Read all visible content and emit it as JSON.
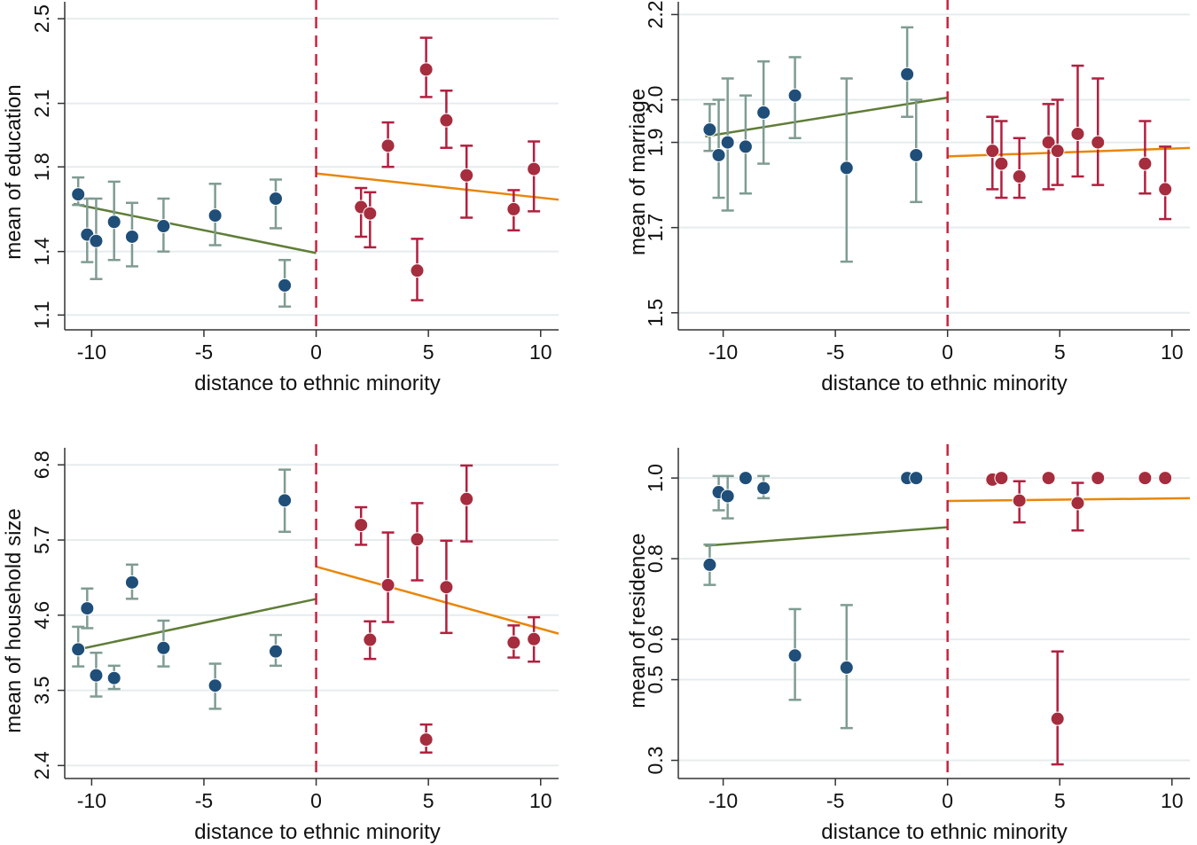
{
  "figure": {
    "background": "#ffffff",
    "grid_color": "#e6ecee"
  },
  "colors": {
    "left_marker": "#1f4e79",
    "left_errorbar": "#7f9c92",
    "left_fit": "#5f7d38",
    "right_marker": "#a52d3e",
    "right_errorbar": "#b21f3f",
    "right_fit": "#e8860b",
    "cutoff_line": "#c8233f"
  },
  "chart_data": [
    {
      "id": "education",
      "type": "scatter",
      "title": "",
      "xlabel": "distance to ethnic minority",
      "ylabel": "mean of education",
      "xlim": [
        -11.2,
        10.8
      ],
      "ylim": [
        1.03,
        2.58
      ],
      "xticks": [
        -10,
        -5,
        0,
        5,
        10
      ],
      "xtick_labels": [
        "-10",
        "-5",
        "0",
        "5",
        "10"
      ],
      "yticks": [
        1.1,
        1.4,
        1.8,
        2.1,
        2.5
      ],
      "ytick_labels": [
        "1.1",
        "1.4",
        "1.8",
        "2.1",
        "2.5"
      ],
      "cutoff": 0,
      "grid": true,
      "left": {
        "points": [
          {
            "x": -10.6,
            "y": 1.67,
            "lo": 1.62,
            "hi": 1.75
          },
          {
            "x": -10.2,
            "y": 1.48,
            "lo": 1.35,
            "hi": 1.65
          },
          {
            "x": -9.8,
            "y": 1.45,
            "lo": 1.27,
            "hi": 1.65
          },
          {
            "x": -9.0,
            "y": 1.54,
            "lo": 1.36,
            "hi": 1.73
          },
          {
            "x": -8.2,
            "y": 1.47,
            "lo": 1.33,
            "hi": 1.63
          },
          {
            "x": -6.8,
            "y": 1.52,
            "lo": 1.4,
            "hi": 1.65
          },
          {
            "x": -4.5,
            "y": 1.57,
            "lo": 1.43,
            "hi": 1.72
          },
          {
            "x": -1.8,
            "y": 1.65,
            "lo": 1.51,
            "hi": 1.74
          },
          {
            "x": -1.4,
            "y": 1.24,
            "lo": 1.14,
            "hi": 1.36
          }
        ],
        "fit": {
          "x": [
            -10.8,
            0
          ],
          "y": [
            1.625,
            1.393
          ]
        }
      },
      "right": {
        "points": [
          {
            "x": 2.0,
            "y": 1.61,
            "lo": 1.47,
            "hi": 1.7
          },
          {
            "x": 2.4,
            "y": 1.58,
            "lo": 1.42,
            "hi": 1.68
          },
          {
            "x": 3.2,
            "y": 1.9,
            "lo": 1.8,
            "hi": 2.01
          },
          {
            "x": 4.5,
            "y": 1.31,
            "lo": 1.17,
            "hi": 1.46
          },
          {
            "x": 4.9,
            "y": 2.26,
            "lo": 2.13,
            "hi": 2.41
          },
          {
            "x": 5.8,
            "y": 2.02,
            "lo": 1.89,
            "hi": 2.16
          },
          {
            "x": 6.7,
            "y": 1.76,
            "lo": 1.56,
            "hi": 1.9
          },
          {
            "x": 8.8,
            "y": 1.6,
            "lo": 1.5,
            "hi": 1.69
          },
          {
            "x": 9.7,
            "y": 1.79,
            "lo": 1.59,
            "hi": 1.92
          }
        ],
        "fit": {
          "x": [
            0,
            10.8
          ],
          "y": [
            1.769,
            1.645
          ]
        }
      }
    },
    {
      "id": "marriage",
      "type": "scatter",
      "title": "",
      "xlabel": "distance to ethnic minority",
      "ylabel": "mean of marriage",
      "xlim": [
        -12.0,
        10.8
      ],
      "ylim": [
        1.46,
        2.23
      ],
      "xticks": [
        -10,
        -5,
        0,
        5,
        10
      ],
      "xtick_labels": [
        "-10",
        "-5",
        "0",
        "5",
        "10"
      ],
      "yticks": [
        1.5,
        1.7,
        1.9,
        2.0,
        2.2
      ],
      "ytick_labels": [
        "1.5",
        "1.7",
        "1.9",
        "2.0",
        "2.2"
      ],
      "cutoff": 0,
      "grid": true,
      "left": {
        "points": [
          {
            "x": -10.6,
            "y": 1.93,
            "lo": 1.88,
            "hi": 1.99
          },
          {
            "x": -10.2,
            "y": 1.87,
            "lo": 1.77,
            "hi": 2.0
          },
          {
            "x": -9.8,
            "y": 1.9,
            "lo": 1.74,
            "hi": 2.05
          },
          {
            "x": -9.0,
            "y": 1.89,
            "lo": 1.78,
            "hi": 2.01
          },
          {
            "x": -8.2,
            "y": 1.97,
            "lo": 1.85,
            "hi": 2.09
          },
          {
            "x": -6.8,
            "y": 2.01,
            "lo": 1.91,
            "hi": 2.1
          },
          {
            "x": -4.5,
            "y": 1.84,
            "lo": 1.62,
            "hi": 2.05
          },
          {
            "x": -1.8,
            "y": 2.06,
            "lo": 1.96,
            "hi": 2.17
          },
          {
            "x": -1.4,
            "y": 1.87,
            "lo": 1.76,
            "hi": 2.0
          }
        ],
        "fit": {
          "x": [
            -10.8,
            0
          ],
          "y": [
            1.914,
            2.005
          ]
        }
      },
      "right": {
        "points": [
          {
            "x": 2.0,
            "y": 1.88,
            "lo": 1.79,
            "hi": 1.96
          },
          {
            "x": 2.4,
            "y": 1.85,
            "lo": 1.77,
            "hi": 1.95
          },
          {
            "x": 3.2,
            "y": 1.82,
            "lo": 1.77,
            "hi": 1.91
          },
          {
            "x": 4.5,
            "y": 1.9,
            "lo": 1.79,
            "hi": 1.99
          },
          {
            "x": 4.9,
            "y": 1.88,
            "lo": 1.8,
            "hi": 2.0
          },
          {
            "x": 5.8,
            "y": 1.92,
            "lo": 1.82,
            "hi": 2.08
          },
          {
            "x": 6.7,
            "y": 1.9,
            "lo": 1.8,
            "hi": 2.05
          },
          {
            "x": 8.8,
            "y": 1.85,
            "lo": 1.78,
            "hi": 1.95
          },
          {
            "x": 9.7,
            "y": 1.79,
            "lo": 1.72,
            "hi": 1.89
          }
        ],
        "fit": {
          "x": [
            0,
            10.8
          ],
          "y": [
            1.867,
            1.887
          ]
        }
      }
    },
    {
      "id": "household_size",
      "type": "scatter",
      "title": "",
      "xlabel": "distance to ethnic minority",
      "ylabel": "mean of household size",
      "xlim": [
        -11.2,
        10.8
      ],
      "ylim": [
        2.21,
        7.05
      ],
      "xticks": [
        -10,
        -5,
        0,
        5,
        10
      ],
      "xtick_labels": [
        "-10",
        "-5",
        "0",
        "5",
        "10"
      ],
      "yticks": [
        2.4,
        3.5,
        4.6,
        5.7,
        6.8
      ],
      "ytick_labels": [
        "2.4",
        "3.5",
        "4.6",
        "5.7",
        "6.8"
      ],
      "cutoff": 0,
      "grid": true,
      "left": {
        "points": [
          {
            "x": -10.6,
            "y": 4.1,
            "lo": 3.85,
            "hi": 4.43
          },
          {
            "x": -10.2,
            "y": 4.7,
            "lo": 4.41,
            "hi": 4.99
          },
          {
            "x": -9.8,
            "y": 3.72,
            "lo": 3.41,
            "hi": 4.05
          },
          {
            "x": -9.0,
            "y": 3.68,
            "lo": 3.52,
            "hi": 3.86
          },
          {
            "x": -8.2,
            "y": 5.08,
            "lo": 4.84,
            "hi": 5.34
          },
          {
            "x": -6.8,
            "y": 4.12,
            "lo": 3.85,
            "hi": 4.52
          },
          {
            "x": -4.5,
            "y": 3.57,
            "lo": 3.23,
            "hi": 3.89
          },
          {
            "x": -1.8,
            "y": 4.07,
            "lo": 3.86,
            "hi": 4.31
          },
          {
            "x": -1.4,
            "y": 6.28,
            "lo": 5.82,
            "hi": 6.73
          }
        ],
        "fit": {
          "x": [
            -10.8,
            0
          ],
          "y": [
            4.085,
            4.837
          ]
        }
      },
      "right": {
        "points": [
          {
            "x": 2.0,
            "y": 5.92,
            "lo": 5.63,
            "hi": 6.18
          },
          {
            "x": 2.4,
            "y": 4.24,
            "lo": 3.96,
            "hi": 4.51
          },
          {
            "x": 3.2,
            "y": 5.04,
            "lo": 4.5,
            "hi": 5.81
          },
          {
            "x": 4.5,
            "y": 5.71,
            "lo": 5.11,
            "hi": 6.24
          },
          {
            "x": 4.9,
            "y": 2.78,
            "lo": 2.59,
            "hi": 3.0
          },
          {
            "x": 5.8,
            "y": 5.01,
            "lo": 4.34,
            "hi": 5.69
          },
          {
            "x": 6.7,
            "y": 6.3,
            "lo": 5.68,
            "hi": 6.79
          },
          {
            "x": 8.8,
            "y": 4.2,
            "lo": 3.98,
            "hi": 4.45
          },
          {
            "x": 9.7,
            "y": 4.25,
            "lo": 3.92,
            "hi": 4.57
          }
        ],
        "fit": {
          "x": [
            0,
            10.8
          ],
          "y": [
            5.31,
            4.33
          ]
        }
      }
    },
    {
      "id": "residence",
      "type": "scatter",
      "title": "",
      "xlabel": "distance to ethnic minority",
      "ylabel": "mean of residence",
      "xlim": [
        -12.0,
        10.8
      ],
      "ylim": [
        0.255,
        1.075
      ],
      "xticks": [
        -10,
        -5,
        0,
        5,
        10
      ],
      "xtick_labels": [
        "-10",
        "-5",
        "0",
        "5",
        "10"
      ],
      "yticks": [
        0.3,
        0.5,
        0.6,
        0.8,
        1.0
      ],
      "ytick_labels": [
        "0.3",
        "0.5",
        "0.6",
        "0.8",
        "1.0"
      ],
      "cutoff": 0,
      "grid": true,
      "left": {
        "points": [
          {
            "x": -10.6,
            "y": 0.785,
            "lo": 0.735,
            "hi": 0.835
          },
          {
            "x": -10.2,
            "y": 0.965,
            "lo": 0.92,
            "hi": 1.005
          },
          {
            "x": -9.8,
            "y": 0.955,
            "lo": 0.9,
            "hi": 1.005
          },
          {
            "x": -9.0,
            "y": 1.0,
            "lo": 1.0,
            "hi": 1.0
          },
          {
            "x": -8.2,
            "y": 0.975,
            "lo": 0.95,
            "hi": 1.005
          },
          {
            "x": -6.8,
            "y": 0.56,
            "lo": 0.45,
            "hi": 0.675
          },
          {
            "x": -4.5,
            "y": 0.53,
            "lo": 0.38,
            "hi": 0.685
          },
          {
            "x": -1.8,
            "y": 1.0,
            "lo": 1.0,
            "hi": 1.0
          },
          {
            "x": -1.4,
            "y": 1.0,
            "lo": 1.0,
            "hi": 1.0
          }
        ],
        "fit": {
          "x": [
            -10.8,
            0
          ],
          "y": [
            0.832,
            0.878
          ]
        }
      },
      "right": {
        "points": [
          {
            "x": 2.0,
            "y": 0.996,
            "lo": 0.988,
            "hi": 1.0
          },
          {
            "x": 2.4,
            "y": 1.0,
            "lo": 1.0,
            "hi": 1.0
          },
          {
            "x": 3.2,
            "y": 0.944,
            "lo": 0.89,
            "hi": 0.992
          },
          {
            "x": 4.5,
            "y": 1.0,
            "lo": 1.0,
            "hi": 1.0
          },
          {
            "x": 4.9,
            "y": 0.403,
            "lo": 0.29,
            "hi": 0.57
          },
          {
            "x": 5.8,
            "y": 0.938,
            "lo": 0.87,
            "hi": 0.988
          },
          {
            "x": 6.7,
            "y": 1.0,
            "lo": 1.0,
            "hi": 1.0
          },
          {
            "x": 8.8,
            "y": 1.0,
            "lo": 1.0,
            "hi": 1.0
          },
          {
            "x": 9.7,
            "y": 1.0,
            "lo": 1.0,
            "hi": 1.0
          }
        ],
        "fit": {
          "x": [
            0,
            10.8
          ],
          "y": [
            0.943,
            0.95
          ]
        }
      }
    }
  ]
}
